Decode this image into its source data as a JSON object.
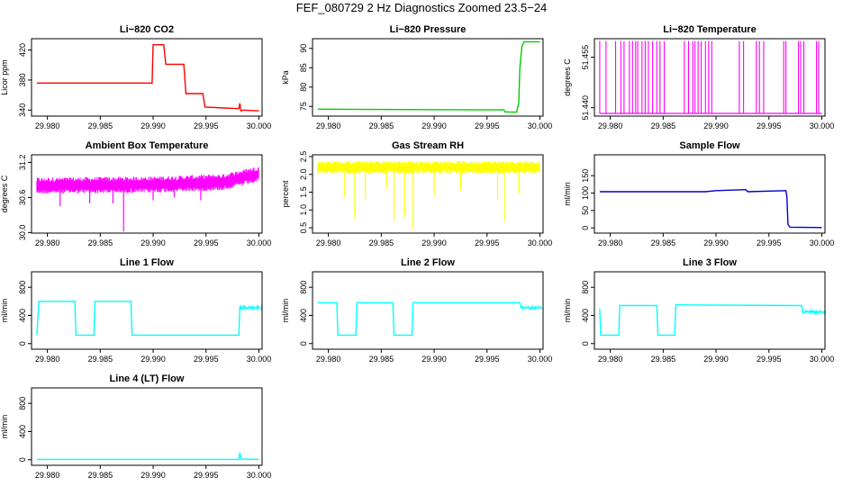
{
  "figure": {
    "title": "FEF_080729  2 Hz Diagnostics Zoomed 23.5−24"
  },
  "chart_data": [
    {
      "type": "line",
      "title": "Li−820 CO2",
      "ylabel": "Licor ppm",
      "color": "#ff0000",
      "xlim": [
        29.9785,
        30.0003
      ],
      "ylim": [
        332,
        435
      ],
      "yticks": [
        340,
        380,
        420
      ],
      "xticks": [
        "29.980",
        "29.985",
        "29.990",
        "29.995",
        "30.000"
      ],
      "series": [
        {
          "x": [
            29.979,
            29.9899,
            29.99,
            29.991,
            29.9912,
            29.9929,
            29.9931,
            29.9947,
            29.9949,
            29.9981,
            29.9982,
            29.9983,
            29.9985,
            30.0
          ],
          "y": [
            376,
            376,
            427,
            427,
            401,
            401,
            362,
            362,
            344,
            342,
            349,
            339,
            340,
            339
          ]
        }
      ]
    },
    {
      "type": "line",
      "title": "Li−820 Pressure",
      "ylabel": "kPa",
      "color": "#00cc00",
      "xlim": [
        29.9785,
        30.0003
      ],
      "ylim": [
        72.5,
        92.5
      ],
      "yticks": [
        75,
        80,
        85,
        90
      ],
      "xticks": [
        "29.980",
        "29.985",
        "29.990",
        "29.995",
        "30.000"
      ],
      "series": [
        {
          "x": [
            29.979,
            29.9966,
            29.9967,
            29.9978,
            29.998,
            29.9981,
            29.9983,
            29.9985,
            30.0
          ],
          "y": [
            74.3,
            74.1,
            73.6,
            73.5,
            76,
            85,
            90.5,
            91.7,
            91.7
          ]
        }
      ]
    },
    {
      "type": "line",
      "title": "Li−820 Temperature",
      "ylabel": "degrees C",
      "color": "#ff00ff",
      "xlim": [
        29.9785,
        30.0003
      ],
      "ylim": [
        51.4375,
        51.4605
      ],
      "yticks": [
        "51.440",
        "51.455"
      ],
      "xticks": [
        "29.980",
        "29.985",
        "29.990",
        "29.995",
        "30.000"
      ],
      "levels": [
        51.4383,
        51.4598
      ],
      "spikes": [
        29.979,
        29.9796,
        29.9805,
        29.981,
        29.9813,
        29.9818,
        29.9821,
        29.9824,
        29.9826,
        29.983,
        29.9833,
        29.9836,
        29.984,
        29.9844,
        29.9847,
        29.9851,
        29.987,
        29.9874,
        29.9878,
        29.988,
        29.9883,
        29.9886,
        29.989,
        29.9893,
        29.9896,
        29.9922,
        29.9926,
        29.9938,
        29.9941,
        29.9945,
        29.9964,
        29.9966,
        29.9978,
        29.998,
        29.9983,
        29.9995,
        29.9997
      ]
    },
    {
      "type": "line",
      "title": "Ambient Box Temperature",
      "ylabel": "degrees C",
      "color": "#ff00ff",
      "xlim": [
        29.9785,
        30.0003
      ],
      "ylim": [
        29.99,
        31.33
      ],
      "yticks": [
        "30.0",
        "30.6",
        "31.2"
      ],
      "xticks": [
        "29.980",
        "29.985",
        "29.990",
        "29.995",
        "30.000"
      ],
      "band": {
        "x": [
          29.979,
          29.99,
          29.9965,
          30.0
        ],
        "center": [
          30.8,
          30.82,
          30.86,
          31.0
        ],
        "halfwidth": 0.1
      },
      "spikes": [
        [
          29.9812,
          30.45
        ],
        [
          29.984,
          30.5
        ],
        [
          29.9862,
          30.5
        ],
        [
          29.9872,
          30.02
        ],
        [
          29.99,
          30.55
        ],
        [
          29.992,
          30.6
        ],
        [
          29.9945,
          30.55
        ]
      ]
    },
    {
      "type": "line",
      "title": "Gas Stream RH",
      "ylabel": "percent",
      "color": "#ffff00",
      "xlim": [
        29.9785,
        30.0003
      ],
      "ylim": [
        0.35,
        2.55
      ],
      "yticks": [
        "0.5",
        "1.0",
        "1.5",
        "2.0",
        "2.5"
      ],
      "xticks": [
        "29.980",
        "29.985",
        "29.990",
        "29.995",
        "30.000"
      ],
      "band": {
        "x": [
          29.979,
          30.0
        ],
        "center": [
          2.2,
          2.2
        ],
        "halfwidth": 0.13
      },
      "spikes": [
        [
          29.9815,
          1.35
        ],
        [
          29.9825,
          0.75
        ],
        [
          29.9835,
          1.3
        ],
        [
          29.9855,
          1.6
        ],
        [
          29.9862,
          0.7
        ],
        [
          29.9872,
          0.8
        ],
        [
          29.988,
          0.45
        ],
        [
          29.99,
          1.4
        ],
        [
          29.9925,
          1.55
        ],
        [
          29.996,
          1.3
        ],
        [
          29.9967,
          0.7
        ],
        [
          29.998,
          1.45
        ]
      ]
    },
    {
      "type": "line",
      "title": "Sample Flow",
      "ylabel": "ml/min",
      "color": "#0000cc",
      "xlim": [
        29.9785,
        30.0003
      ],
      "ylim": [
        -15,
        210
      ],
      "yticks": [
        0,
        50,
        100,
        150
      ],
      "xticks": [
        "29.980",
        "29.985",
        "29.990",
        "29.995",
        "30.000"
      ],
      "series": [
        {
          "x": [
            29.979,
            29.989,
            29.99,
            29.9928,
            29.993,
            29.9966,
            29.9967,
            29.9968,
            29.997,
            30.0
          ],
          "y": [
            104,
            104,
            107,
            110,
            104,
            107,
            90,
            10,
            2,
            1
          ]
        }
      ]
    },
    {
      "type": "line",
      "title": "Line 1 Flow",
      "ylabel": "ml/min",
      "color": "#00ffff",
      "xlim": [
        29.9785,
        30.0003
      ],
      "ylim": [
        -80,
        1020
      ],
      "yticks": [
        0,
        400,
        800
      ],
      "xticks": [
        "29.980",
        "29.985",
        "29.990",
        "29.995",
        "30.000"
      ],
      "series": [
        {
          "x": [
            29.979,
            29.9792,
            29.9826,
            29.9827,
            29.9844,
            29.9845,
            29.9879,
            29.988,
            29.9981,
            29.9982,
            30.0
          ],
          "y": [
            130,
            600,
            600,
            120,
            120,
            600,
            600,
            120,
            120,
            510,
            510
          ]
        }
      ],
      "noise_from": 29.9982
    },
    {
      "type": "line",
      "title": "Line 2 Flow",
      "ylabel": "ml/min",
      "color": "#00ffff",
      "xlim": [
        29.9785,
        30.0003
      ],
      "ylim": [
        -80,
        1020
      ],
      "yticks": [
        0,
        400,
        800
      ],
      "xticks": [
        "29.980",
        "29.985",
        "29.990",
        "29.995",
        "30.000"
      ],
      "series": [
        {
          "x": [
            29.979,
            29.9808,
            29.9809,
            29.9826,
            29.9827,
            29.9861,
            29.9862,
            29.9879,
            29.988,
            29.9981,
            29.9982,
            30.0
          ],
          "y": [
            580,
            580,
            120,
            120,
            580,
            580,
            120,
            120,
            580,
            580,
            510,
            510
          ]
        }
      ],
      "noise_from": 29.9982
    },
    {
      "type": "line",
      "title": "Line 3 Flow",
      "ylabel": "ml/min",
      "color": "#00ffff",
      "xlim": [
        29.9785,
        30.0003
      ],
      "ylim": [
        -80,
        1020
      ],
      "yticks": [
        0,
        400,
        800
      ],
      "xticks": [
        "29.980",
        "29.985",
        "29.990",
        "29.995",
        "30.000"
      ],
      "series": [
        {
          "x": [
            29.979,
            29.9791,
            29.9808,
            29.9809,
            29.9844,
            29.9845,
            29.9861,
            29.9862,
            29.9981,
            29.9982,
            30.0
          ],
          "y": [
            500,
            120,
            120,
            540,
            540,
            120,
            120,
            550,
            540,
            450,
            450
          ]
        }
      ],
      "noise_from": 29.9982
    },
    {
      "type": "line",
      "title": "Line 4 (LT) Flow",
      "ylabel": "ml/min",
      "color": "#00ffff",
      "xlim": [
        29.9785,
        30.0003
      ],
      "ylim": [
        -80,
        1020
      ],
      "yticks": [
        0,
        400,
        800
      ],
      "xticks": [
        "29.980",
        "29.985",
        "29.990",
        "29.995",
        "30.000"
      ],
      "series": [
        {
          "x": [
            29.979,
            29.9981,
            29.9982,
            29.9983,
            30.0
          ],
          "y": [
            5,
            5,
            100,
            10,
            5
          ]
        }
      ]
    }
  ]
}
